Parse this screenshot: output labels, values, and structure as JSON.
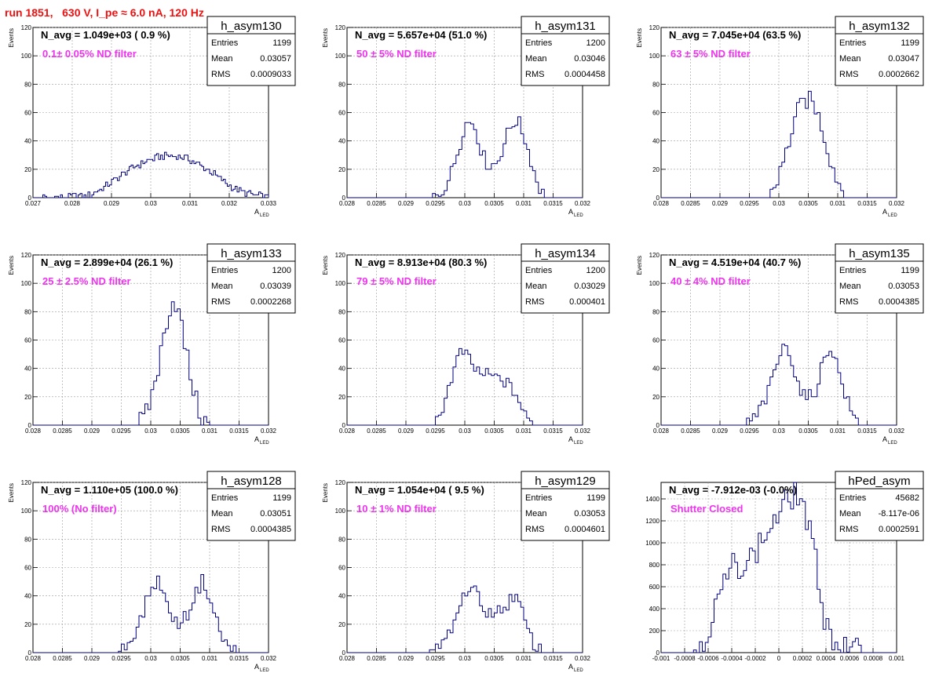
{
  "page_title": "run 1851,   630 V, I_pe ≈ 6.0 nA, 120 Hz",
  "chart_data": [
    {
      "type": "histogram",
      "name": "h_asym130",
      "navg": "N_avg = 1.049e+03 ( 0.9 %)",
      "filter": "0.1± 0.05% ND filter",
      "stats": {
        "Entries": "1199",
        "Mean": "0.03057",
        "RMS": "0.0009033"
      },
      "xlim": [
        0.027,
        0.033
      ],
      "ylim": [
        0,
        120
      ],
      "xticks": [
        "0.027",
        "0.028",
        "0.029",
        "0.03",
        "0.031",
        "0.032",
        "0.033"
      ],
      "yticks": [
        "0",
        "20",
        "40",
        "60",
        "80",
        "100",
        "120"
      ],
      "xlabel": "A",
      "xlabel_sub": "LED",
      "ylabel": "Events",
      "profile": {
        "kind": "gauss",
        "pts": [
          [
            0.0272,
            0
          ],
          [
            0.0284,
            1
          ],
          [
            0.0288,
            7
          ],
          [
            0.0292,
            15
          ],
          [
            0.0296,
            22
          ],
          [
            0.03,
            27
          ],
          [
            0.0304,
            30
          ],
          [
            0.0308,
            29
          ],
          [
            0.0312,
            24
          ],
          [
            0.0316,
            17
          ],
          [
            0.032,
            9
          ],
          [
            0.0324,
            3
          ],
          [
            0.0328,
            1
          ],
          [
            0.033,
            0
          ]
        ]
      },
      "binwidth": 5e-05
    },
    {
      "type": "histogram",
      "name": "h_asym131",
      "navg": "N_avg = 5.657e+04 (51.0 %)",
      "filter": "50 ± 5% ND filter",
      "stats": {
        "Entries": "1200",
        "Mean": "0.03046",
        "RMS": "0.0004458"
      },
      "xlim": [
        0.028,
        0.032
      ],
      "ylim": [
        0,
        120
      ],
      "xticks": [
        "0.028",
        "0.0285",
        "0.029",
        "0.0295",
        "0.03",
        "0.0305",
        "0.031",
        "0.0315",
        "0.032"
      ],
      "yticks": [
        "0",
        "20",
        "40",
        "60",
        "80",
        "100",
        "120"
      ],
      "xlabel": "A",
      "xlabel_sub": "LED",
      "ylabel": "Events",
      "profile": {
        "kind": "pts",
        "pts": [
          [
            0.02945,
            0
          ],
          [
            0.0296,
            3
          ],
          [
            0.02975,
            15
          ],
          [
            0.0299,
            35
          ],
          [
            0.03,
            52
          ],
          [
            0.03015,
            54
          ],
          [
            0.0303,
            30
          ],
          [
            0.0304,
            22
          ],
          [
            0.03055,
            25
          ],
          [
            0.0307,
            42
          ],
          [
            0.0308,
            52
          ],
          [
            0.0309,
            55
          ],
          [
            0.03105,
            38
          ],
          [
            0.0312,
            15
          ],
          [
            0.0313,
            4
          ],
          [
            0.0314,
            0
          ]
        ]
      },
      "binwidth": 5e-05
    },
    {
      "type": "histogram",
      "name": "h_asym132",
      "navg": "N_avg = 7.045e+04 (63.5 %)",
      "filter": "63 ± 5% ND filter",
      "stats": {
        "Entries": "1199",
        "Mean": "0.03047",
        "RMS": "0.0002662"
      },
      "xlim": [
        0.028,
        0.032
      ],
      "ylim": [
        0,
        120
      ],
      "xticks": [
        "0.028",
        "0.0285",
        "0.029",
        "0.0295",
        "0.03",
        "0.0305",
        "0.031",
        "0.0315",
        "0.032"
      ],
      "yticks": [
        "0",
        "20",
        "40",
        "60",
        "80",
        "100",
        "120"
      ],
      "xlabel": "A",
      "xlabel_sub": "LED",
      "ylabel": "Events",
      "profile": {
        "kind": "pts",
        "pts": [
          [
            0.0298,
            0
          ],
          [
            0.0299,
            6
          ],
          [
            0.03,
            15
          ],
          [
            0.03015,
            35
          ],
          [
            0.0303,
            60
          ],
          [
            0.0304,
            66
          ],
          [
            0.03055,
            70
          ],
          [
            0.0307,
            55
          ],
          [
            0.03085,
            30
          ],
          [
            0.031,
            12
          ],
          [
            0.0311,
            4
          ],
          [
            0.0312,
            0
          ]
        ]
      },
      "binwidth": 5e-05
    },
    {
      "type": "histogram",
      "name": "h_asym133",
      "navg": "N_avg = 2.899e+04 (26.1 %)",
      "filter": "25 ± 2.5% ND filter",
      "stats": {
        "Entries": "1200",
        "Mean": "0.03039",
        "RMS": "0.0002268"
      },
      "xlim": [
        0.028,
        0.032
      ],
      "ylim": [
        0,
        120
      ],
      "xticks": [
        "0.028",
        "0.0285",
        "0.029",
        "0.0295",
        "0.03",
        "0.0305",
        "0.031",
        "0.0315",
        "0.032"
      ],
      "yticks": [
        "0",
        "20",
        "40",
        "60",
        "80",
        "100",
        "120"
      ],
      "xlabel": "A",
      "xlabel_sub": "LED",
      "ylabel": "Events",
      "profile": {
        "kind": "pts",
        "pts": [
          [
            0.02975,
            0
          ],
          [
            0.0299,
            4
          ],
          [
            0.03,
            18
          ],
          [
            0.03015,
            45
          ],
          [
            0.0303,
            80
          ],
          [
            0.0304,
            90
          ],
          [
            0.0305,
            75
          ],
          [
            0.03065,
            40
          ],
          [
            0.0308,
            12
          ],
          [
            0.0309,
            3
          ],
          [
            0.031,
            0
          ]
        ]
      },
      "binwidth": 5e-05
    },
    {
      "type": "histogram",
      "name": "h_asym134",
      "navg": "N_avg = 8.913e+04 (80.3 %)",
      "filter": "79 ± 5% ND filter",
      "stats": {
        "Entries": "1200",
        "Mean": "0.03029",
        "RMS": "0.000401"
      },
      "xlim": [
        0.028,
        0.032
      ],
      "ylim": [
        0,
        120
      ],
      "xticks": [
        "0.028",
        "0.0285",
        "0.029",
        "0.0295",
        "0.03",
        "0.0305",
        "0.031",
        "0.0315",
        "0.032"
      ],
      "yticks": [
        "0",
        "20",
        "40",
        "60",
        "80",
        "100",
        "120"
      ],
      "xlabel": "A",
      "xlabel_sub": "LED",
      "ylabel": "Events",
      "profile": {
        "kind": "pts",
        "pts": [
          [
            0.0295,
            0
          ],
          [
            0.0296,
            10
          ],
          [
            0.02975,
            30
          ],
          [
            0.0299,
            50
          ],
          [
            0.03,
            52
          ],
          [
            0.03015,
            40
          ],
          [
            0.0303,
            36
          ],
          [
            0.0305,
            34
          ],
          [
            0.0307,
            30
          ],
          [
            0.0309,
            20
          ],
          [
            0.031,
            8
          ],
          [
            0.0311,
            2
          ],
          [
            0.0312,
            0
          ]
        ]
      },
      "binwidth": 5e-05
    },
    {
      "type": "histogram",
      "name": "h_asym135",
      "navg": "N_avg = 4.519e+04 (40.7 %)",
      "filter": "40 ± 4% ND filter",
      "stats": {
        "Entries": "1199",
        "Mean": "0.03053",
        "RMS": "0.0004385"
      },
      "xlim": [
        0.028,
        0.032
      ],
      "ylim": [
        0,
        120
      ],
      "xticks": [
        "0.028",
        "0.0285",
        "0.029",
        "0.0295",
        "0.03",
        "0.0305",
        "0.031",
        "0.0315",
        "0.032"
      ],
      "yticks": [
        "0",
        "20",
        "40",
        "60",
        "80",
        "100",
        "120"
      ],
      "xlabel": "A",
      "xlabel_sub": "LED",
      "ylabel": "Events",
      "profile": {
        "kind": "pts",
        "pts": [
          [
            0.0294,
            0
          ],
          [
            0.0296,
            5
          ],
          [
            0.0298,
            20
          ],
          [
            0.03,
            48
          ],
          [
            0.03015,
            58
          ],
          [
            0.0303,
            32
          ],
          [
            0.03045,
            18
          ],
          [
            0.0306,
            22
          ],
          [
            0.0308,
            50
          ],
          [
            0.0309,
            56
          ],
          [
            0.031,
            40
          ],
          [
            0.0312,
            12
          ],
          [
            0.0313,
            4
          ],
          [
            0.0314,
            0
          ]
        ]
      },
      "binwidth": 5e-05
    },
    {
      "type": "histogram",
      "name": "h_asym128",
      "navg": "N_avg = 1.110e+05 (100.0 %)",
      "filter": "100% (No filter)",
      "stats": {
        "Entries": "1199",
        "Mean": "0.03051",
        "RMS": "0.0004385"
      },
      "xlim": [
        0.028,
        0.032
      ],
      "ylim": [
        0,
        120
      ],
      "xticks": [
        "0.028",
        "0.0285",
        "0.029",
        "0.0295",
        "0.03",
        "0.0305",
        "0.031",
        "0.0315",
        "0.032"
      ],
      "yticks": [
        "0",
        "20",
        "40",
        "60",
        "80",
        "100",
        "120"
      ],
      "xlabel": "A",
      "xlabel_sub": "LED",
      "ylabel": "Events",
      "profile": {
        "kind": "pts",
        "pts": [
          [
            0.0294,
            0
          ],
          [
            0.0296,
            5
          ],
          [
            0.0298,
            20
          ],
          [
            0.03,
            45
          ],
          [
            0.03015,
            52
          ],
          [
            0.0303,
            30
          ],
          [
            0.03045,
            20
          ],
          [
            0.0306,
            25
          ],
          [
            0.0308,
            45
          ],
          [
            0.0309,
            52
          ],
          [
            0.031,
            38
          ],
          [
            0.0312,
            12
          ],
          [
            0.0313,
            4
          ],
          [
            0.0315,
            0
          ]
        ]
      },
      "binwidth": 5e-05
    },
    {
      "type": "histogram",
      "name": "h_asym129",
      "navg": "N_avg = 1.054e+04 ( 9.5 %)",
      "filter": "10 ± 1% ND filter",
      "stats": {
        "Entries": "1199",
        "Mean": "0.03053",
        "RMS": "0.0004601"
      },
      "xlim": [
        0.028,
        0.032
      ],
      "ylim": [
        0,
        120
      ],
      "xticks": [
        "0.028",
        "0.0285",
        "0.029",
        "0.0295",
        "0.03",
        "0.0305",
        "0.031",
        "0.0315",
        "0.032"
      ],
      "yticks": [
        "0",
        "20",
        "40",
        "60",
        "80",
        "100",
        "120"
      ],
      "xlabel": "A",
      "xlabel_sub": "LED",
      "ylabel": "Events",
      "profile": {
        "kind": "pts",
        "pts": [
          [
            0.0294,
            0
          ],
          [
            0.0296,
            4
          ],
          [
            0.0298,
            18
          ],
          [
            0.03,
            42
          ],
          [
            0.03015,
            48
          ],
          [
            0.0303,
            30
          ],
          [
            0.0305,
            28
          ],
          [
            0.0307,
            32
          ],
          [
            0.0308,
            40
          ],
          [
            0.0309,
            38
          ],
          [
            0.0311,
            12
          ],
          [
            0.0312,
            4
          ],
          [
            0.0314,
            0
          ]
        ]
      },
      "binwidth": 5e-05
    },
    {
      "type": "histogram",
      "name": "hPed_asym",
      "navg": "N_avg = -7.912e-03 (-0.0%)",
      "filter": "Shutter Closed",
      "stats": {
        "Entries": "45682",
        "Mean": "-8.117e-06",
        "RMS": "0.0002591"
      },
      "xlim": [
        -0.001,
        0.001
      ],
      "ylim": [
        0,
        1550
      ],
      "xticks": [
        "-0.001",
        "-0.0008",
        "-0.0006",
        "-0.0004",
        "-0.0002",
        "0",
        "0.0002",
        "0.0004",
        "0.0006",
        "0.0008",
        "0.001"
      ],
      "yticks": [
        "0",
        "200",
        "400",
        "600",
        "800",
        "1000",
        "1200",
        "1400"
      ],
      "xlabel": "",
      "xlabel_sub": "",
      "ylabel": "",
      "profile": {
        "kind": "pts",
        "pts": [
          [
            -0.00075,
            0
          ],
          [
            -0.0007,
            40
          ],
          [
            -0.0006,
            200
          ],
          [
            -0.0005,
            520
          ],
          [
            -0.0004,
            780
          ],
          [
            -0.0003,
            820
          ],
          [
            -0.0002,
            900
          ],
          [
            -0.0001,
            1100
          ],
          [
            0.0,
            1250
          ],
          [
            0.0001,
            1420
          ],
          [
            0.00015,
            1450
          ],
          [
            0.0002,
            1380
          ],
          [
            0.0003,
            900
          ],
          [
            0.0004,
            260
          ],
          [
            0.0005,
            60
          ],
          [
            0.0006,
            10
          ],
          [
            0.0007,
            0
          ]
        ]
      },
      "binwidth": 2.5e-05
    }
  ]
}
